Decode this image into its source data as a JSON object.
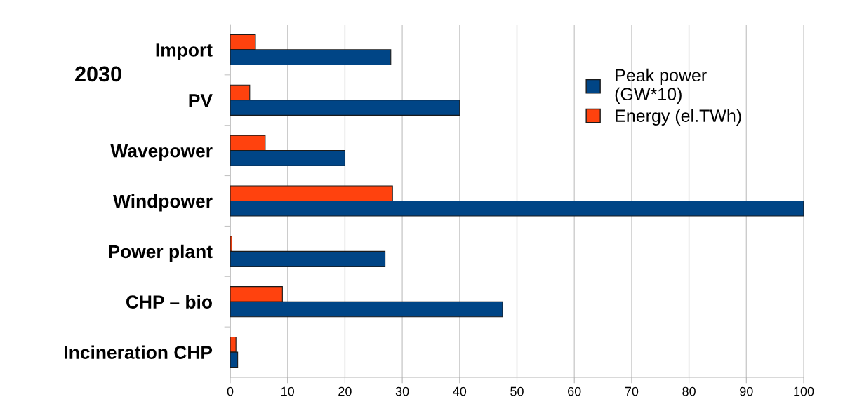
{
  "chart_data": {
    "type": "bar",
    "orientation": "horizontal",
    "title": "2030",
    "categories": [
      "Import",
      "PV",
      "Wavepower",
      "Windpower",
      "Power plant",
      "CHP – bio",
      "Incineration CHP"
    ],
    "series": [
      {
        "name": "Energy (el.TWh)",
        "color": "#ff420e",
        "values": [
          4.4,
          3.4,
          6.1,
          28.3,
          0.3,
          9.1,
          1.0
        ]
      },
      {
        "name": "Peak power\n(GW*10)",
        "color": "#004586",
        "values": [
          28.0,
          40.0,
          20.0,
          100,
          27.0,
          47.5,
          1.3
        ]
      }
    ],
    "xlim": [
      0,
      100
    ],
    "xticks": [
      0,
      10,
      20,
      30,
      40,
      50,
      60,
      70,
      80,
      90,
      100
    ],
    "grid": "x",
    "legend": "top right"
  }
}
